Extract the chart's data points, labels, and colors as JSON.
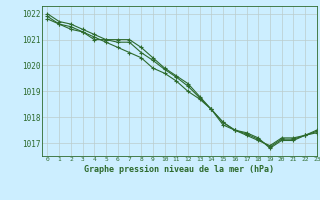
{
  "title": "Graphe pression niveau de la mer (hPa)",
  "bg_color": "#cceeff",
  "grid_color": "#bbcccc",
  "line_color": "#2d6a2d",
  "xlim": [
    -0.5,
    23
  ],
  "ylim": [
    1016.5,
    1022.3
  ],
  "yticks": [
    1017,
    1018,
    1019,
    1020,
    1021,
    1022
  ],
  "xticks": [
    0,
    1,
    2,
    3,
    4,
    5,
    6,
    7,
    8,
    9,
    10,
    11,
    12,
    13,
    14,
    15,
    16,
    17,
    18,
    19,
    20,
    21,
    22,
    23
  ],
  "series": [
    [
      1022.0,
      1021.7,
      1021.6,
      1021.4,
      1021.2,
      1021.0,
      1021.0,
      1021.0,
      1020.7,
      1020.3,
      1019.9,
      1019.6,
      1019.3,
      1018.8,
      1018.3,
      1017.8,
      1017.5,
      1017.3,
      1017.1,
      1016.9,
      1017.2,
      1017.2,
      1017.3,
      1017.4
    ],
    [
      1021.8,
      1021.6,
      1021.4,
      1021.3,
      1021.1,
      1020.9,
      1020.7,
      1020.5,
      1020.3,
      1019.9,
      1019.7,
      1019.4,
      1019.0,
      1018.7,
      1018.3,
      1017.7,
      1017.5,
      1017.4,
      1017.2,
      1016.8,
      1017.1,
      1017.1,
      1017.3,
      1017.5
    ],
    [
      1021.9,
      1021.6,
      1021.5,
      1021.3,
      1021.0,
      1021.0,
      1020.9,
      1020.9,
      1020.5,
      1020.2,
      1019.85,
      1019.55,
      1019.2,
      1018.75,
      1018.3,
      1017.8,
      1017.5,
      1017.35,
      1017.15,
      1016.85,
      1017.15,
      1017.15,
      1017.3,
      1017.45
    ]
  ]
}
